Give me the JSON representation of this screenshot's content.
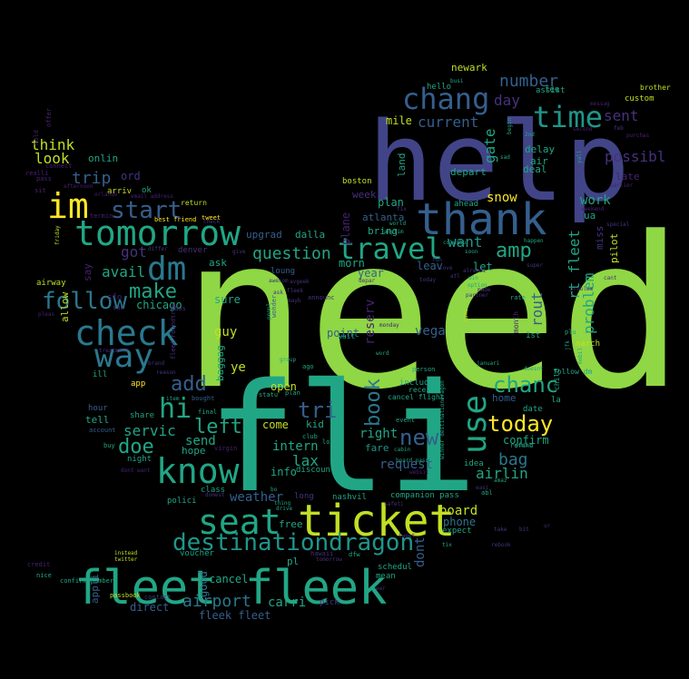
{
  "colors": {
    "background": "#000000",
    "green_bright": "#8fd744",
    "green_yellow": "#c2df23",
    "yellow": "#fde725",
    "teal": "#21a685",
    "teal_dark": "#1f968b",
    "blue_teal": "#2a788e",
    "blue": "#355f8d",
    "indigo": "#414487",
    "purple": "#46327e",
    "violet": "#482173"
  },
  "words": [
    "need",
    "fli",
    "help",
    "thank",
    "ticket",
    "fleet fleek",
    "know",
    "seat",
    "destinationdragon",
    "tomorrow",
    "check",
    "im",
    "way",
    "dm",
    "travel",
    "chang",
    "time",
    "use",
    "today",
    "chanc",
    "book",
    "new",
    "hi",
    "start",
    "follow",
    "make",
    "amp",
    "want",
    "number",
    "current",
    "sent",
    "possibl",
    "add",
    "left",
    "doe",
    "tri",
    "servic",
    "question",
    "avail",
    "got",
    "trip",
    "think",
    "look",
    "onlin",
    "airport",
    "bag",
    "airlin",
    "board",
    "phone",
    "request",
    "lax",
    "intern",
    "confirm",
    "right",
    "fare",
    "dont",
    "send",
    "snow",
    "work",
    "day",
    "mile",
    "gate",
    "rt fleet",
    "problem",
    "rout",
    "sure",
    "guy",
    "ye",
    "open",
    "come",
    "kid",
    "info",
    "weather",
    "free",
    "carri",
    "fleek fleet",
    "direct",
    "cancel",
    "good",
    "appli",
    "ask",
    "hope",
    "night",
    "share",
    "tell",
    "ord",
    "ok",
    "upgrad",
    "dalla",
    "denver",
    "vega",
    "reserv",
    "point",
    "morn",
    "year",
    "leav",
    "let",
    "plan",
    "atlanta",
    "bring",
    "plane",
    "boston",
    "week",
    "land",
    "delay",
    "air",
    "deal",
    "depart",
    "late",
    "ua",
    "pilot",
    "miss",
    "newark",
    "fee",
    "assist",
    "custom",
    "brother",
    "hello",
    "return",
    "best friend",
    "tweet",
    "chicago",
    "airway",
    "allow",
    "say",
    "app",
    "ill",
    "hour",
    "baggag",
    "cancel flight",
    "receiv",
    "includ",
    "home",
    "date",
    "la",
    "child",
    "follow dm",
    "march",
    "wait",
    "1st",
    "month",
    "companion pass",
    "nashvil",
    "long",
    "discount",
    "idea",
    "refund",
    "schedul",
    "mean",
    "expect",
    "pick",
    "voucher",
    "class",
    "polici",
    "instead",
    "twitter",
    "passbook",
    "credit",
    "contact",
    "pl",
    "cabin",
    "board pass",
    "websit",
    "arriv",
    "hold",
    "offer",
    "realli",
    "pass",
    "sit",
    "email address",
    "orlando",
    "afternoon",
    "connect",
    "termin",
    "sfo",
    "san",
    "caus",
    "fleet",
    "brand",
    "person",
    "ago",
    "statu",
    "event",
    "winner destinationdragon",
    "club",
    "lol",
    "virgin",
    "buy",
    "dont want",
    "account",
    "final",
    "bought",
    "announc",
    "depar",
    "monday",
    "group",
    "word",
    "januari",
    "canc",
    "option",
    "partner",
    "rate",
    "plu",
    "jfk",
    "sad",
    "2nd",
    "begin",
    "yall",
    "feb",
    "purchas",
    "messag",
    "second",
    "earlier",
    "weekend",
    "happen",
    "soon",
    "busi",
    "win",
    "columbu",
    "anytim",
    "world",
    "friday",
    "item",
    "differ",
    "give",
    "super",
    "tix",
    "dfw",
    "hawaii",
    "safeti",
    "drive",
    "thing",
    "bo",
    "domest",
    "easi",
    "amaz",
    "abl",
    "posit",
    "special",
    "cant",
    "mobil",
    "problem",
    "doesnt",
    "reason",
    "pleas",
    "roundtrip",
    "treatment",
    "wonder",
    "mayb",
    "peopl",
    "fleek",
    "loung",
    "awesom",
    "avgeek",
    "ask",
    "ahead",
    "fix",
    "fun",
    "love",
    "atl",
    "alreadi",
    "today",
    "made",
    "plan",
    "tomorrow",
    "check",
    "confirm number",
    "ewr",
    "tweet",
    "take",
    "ur",
    "bit",
    "rebook",
    "nice",
    "cost",
    "unit",
    "don"
  ]
}
